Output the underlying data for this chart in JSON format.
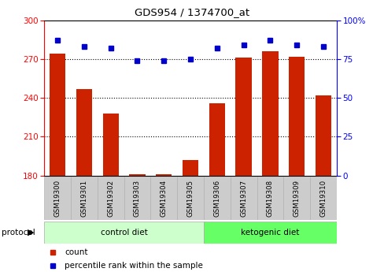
{
  "title": "GDS954 / 1374700_at",
  "samples": [
    "GSM19300",
    "GSM19301",
    "GSM19302",
    "GSM19303",
    "GSM19304",
    "GSM19305",
    "GSM19306",
    "GSM19307",
    "GSM19308",
    "GSM19309",
    "GSM19310"
  ],
  "red_values": [
    274,
    247,
    228,
    181,
    181,
    192,
    236,
    271,
    276,
    272,
    242
  ],
  "blue_values": [
    87,
    83,
    82,
    74,
    74,
    75,
    82,
    84,
    87,
    84,
    83
  ],
  "ylim_left": [
    180,
    300
  ],
  "ylim_right": [
    0,
    100
  ],
  "yticks_left": [
    180,
    210,
    240,
    270,
    300
  ],
  "yticks_right": [
    0,
    25,
    50,
    75,
    100
  ],
  "control_diet_indices": [
    0,
    1,
    2,
    3,
    4,
    5
  ],
  "ketogenic_diet_indices": [
    6,
    7,
    8,
    9,
    10
  ],
  "control_color": "#ccffcc",
  "ketogenic_color": "#66ff66",
  "bar_color": "#cc2200",
  "dot_color": "#0000cc",
  "bar_width": 0.6,
  "sample_bg_color": "#cccccc",
  "chart_bg_color": "#ffffff"
}
